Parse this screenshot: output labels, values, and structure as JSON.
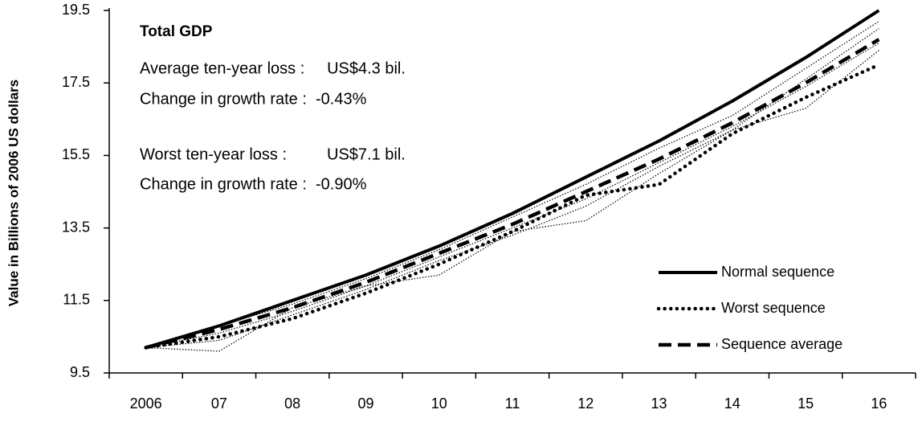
{
  "chart_data": {
    "type": "line",
    "y_label": "Value in Billions of 2006 US dollars",
    "annotations": [
      "Total GDP",
      "Average ten-year loss :     US$4.3 bil.",
      "Change in growth rate :  -0.43%",
      "Worst ten-year loss :         US$7.1 bil.",
      "Change in growth rate :  -0.90%"
    ],
    "categories": [
      "2006",
      "07",
      "08",
      "09",
      "10",
      "11",
      "12",
      "13",
      "14",
      "15",
      "16"
    ],
    "ylim": [
      9.5,
      19.5
    ],
    "yticks": [
      9.5,
      11.5,
      13.5,
      15.5,
      17.5,
      19.5
    ],
    "legend": "bottom-right",
    "series": [
      {
        "name": "Normal sequence",
        "color": "#000000",
        "style": "solid",
        "values": [
          10.2,
          10.8,
          11.5,
          12.2,
          13.0,
          13.9,
          14.9,
          15.9,
          17.0,
          18.2,
          19.5
        ]
      },
      {
        "name": "Worst sequence",
        "color": "#000000",
        "style": "dotted",
        "values": [
          10.2,
          10.5,
          11.0,
          11.7,
          12.5,
          13.4,
          14.4,
          14.7,
          16.1,
          17.1,
          18.0
        ]
      },
      {
        "name": "Sequence average",
        "color": "#000000",
        "style": "dashed",
        "values": [
          10.2,
          10.7,
          11.3,
          12.0,
          12.8,
          13.6,
          14.5,
          15.4,
          16.4,
          17.5,
          18.7
        ]
      },
      {
        "color": "#000000",
        "style": "thin-dotted",
        "values": [
          10.2,
          10.1,
          11.3,
          11.9,
          12.2,
          13.4,
          13.7,
          15.0,
          16.2,
          16.8,
          18.4
        ]
      },
      {
        "color": "#000000",
        "style": "thin-dotted",
        "values": [
          10.2,
          10.6,
          11.2,
          11.9,
          12.7,
          13.5,
          14.3,
          15.3,
          16.3,
          17.4,
          18.6
        ]
      },
      {
        "color": "#000000",
        "style": "thin-dotted",
        "values": [
          10.2,
          10.8,
          11.4,
          12.1,
          12.9,
          13.8,
          14.7,
          15.7,
          16.6,
          17.9,
          19.2
        ]
      },
      {
        "color": "#000000",
        "style": "thin-dotted",
        "values": [
          10.2,
          10.4,
          11.1,
          11.8,
          12.6,
          13.3,
          14.1,
          15.2,
          16.2,
          17.6,
          19.0
        ]
      }
    ]
  }
}
